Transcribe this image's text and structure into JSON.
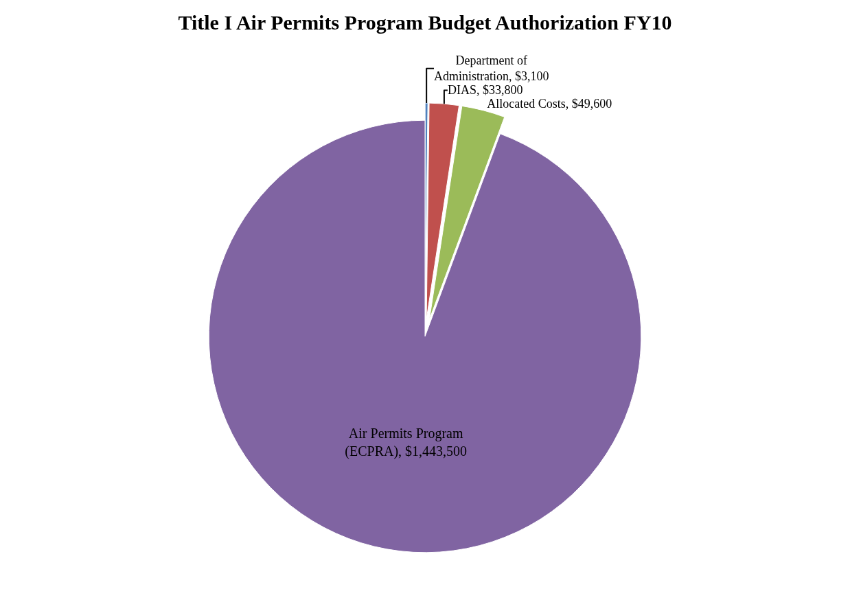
{
  "chart_data": {
    "type": "pie",
    "title": "Title I Air Permits Program Budget Authorization FY10",
    "categories": [
      "Department of Administration",
      "DIAS",
      "Allocated Costs",
      "Air Permits Program (ECPRA)"
    ],
    "values": [
      3100,
      33800,
      49600,
      1443500
    ],
    "value_labels": [
      "$3,100",
      "$33,800",
      "$49,600",
      "$1,443,500"
    ],
    "colors": [
      "#4f81bd",
      "#c0504d",
      "#9bbb59",
      "#8064a2"
    ],
    "legend": false
  }
}
